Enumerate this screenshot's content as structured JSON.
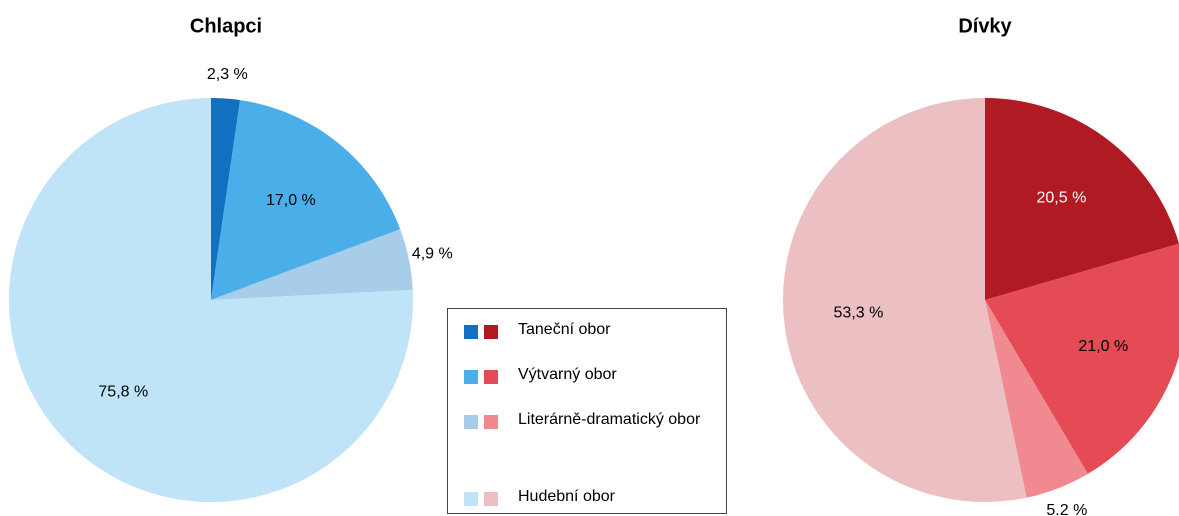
{
  "chart_data": [
    {
      "type": "pie",
      "title": "Chlapci",
      "categories": [
        "Taneční obor",
        "Výtvarný obor",
        "Literárně-dramatický obor",
        "Hudební obor"
      ],
      "values": [
        2.3,
        17.0,
        4.9,
        75.8
      ],
      "value_labels": [
        "2,3 %",
        "17,0 %",
        "4,9 %",
        "75,8 %"
      ],
      "colors": [
        "#1170c0",
        "#4aaee8",
        "#a7cde8",
        "#bfe3f7"
      ],
      "value_label_colors": [
        "#000000",
        "#000000",
        "#000000",
        "#000000"
      ]
    },
    {
      "type": "pie",
      "title": "Dívky",
      "values": [
        20.5,
        21.0,
        5.2,
        53.3
      ],
      "value_labels": [
        "20,5 %",
        "21,0 %",
        "5.2 %",
        "53,3 %"
      ],
      "colors": [
        "#b01a22",
        "#e54b55",
        "#f08a90",
        "#ecc0c3"
      ],
      "value_label_colors": [
        "#ffffff",
        "#000000",
        "#000000",
        "#000000"
      ]
    }
  ]
}
